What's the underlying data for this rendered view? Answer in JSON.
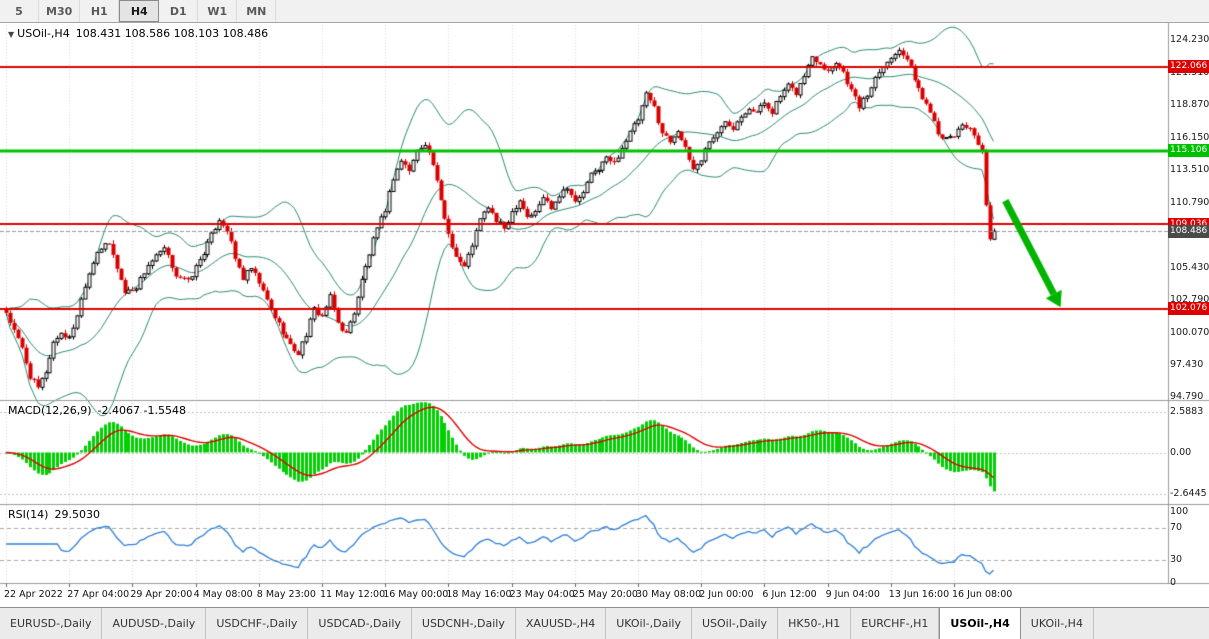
{
  "toolbar": {
    "timeframes": [
      "5",
      "M30",
      "H1",
      "H4",
      "D1",
      "W1",
      "MN"
    ],
    "active": "H4"
  },
  "chart": {
    "title_symbol": "USOil-,H4",
    "title_ohlc": "108.431 108.586 108.103 108.486",
    "macd_name": "MACD(12,26,9)",
    "macd_values": "-2.4067 -1.5548",
    "rsi_name": "RSI(14)",
    "rsi_value": "29.5030"
  },
  "chart_data": {
    "type": "candlestick",
    "symbol": "USOil-,H4",
    "current_ohlc": {
      "open": 108.431,
      "high": 108.586,
      "low": 108.103,
      "close": 108.486
    },
    "y_axis_labels": [
      "124.230",
      "121.510",
      "118.870",
      "116.150",
      "113.510",
      "110.790",
      "105.430",
      "102.790",
      "100.070",
      "97.430",
      "94.790"
    ],
    "x_axis_labels": [
      "22 Apr 2022",
      "27 Apr 04:00",
      "29 Apr 20:00",
      "4 May 08:00",
      "8 May 23:00",
      "11 May 12:00",
      "16 May 00:00",
      "18 May 16:00",
      "23 May 04:00",
      "25 May 20:00",
      "30 May 08:00",
      "2 Jun 00:00",
      "6 Jun 12:00",
      "9 Jun 04:00",
      "13 Jun 16:00",
      "16 Jun 08:00"
    ],
    "bars_per_label": 16,
    "bar_count": 251,
    "price_anchors": [
      [
        0,
        101.8
      ],
      [
        2,
        100.2
      ],
      [
        4,
        98.8
      ],
      [
        6,
        96.5
      ],
      [
        8,
        95.5
      ],
      [
        10,
        96.9
      ],
      [
        12,
        99.3
      ],
      [
        14,
        100.1
      ],
      [
        16,
        99.6
      ],
      [
        18,
        101.6
      ],
      [
        20,
        104.1
      ],
      [
        23,
        106.9
      ],
      [
        26,
        107.4
      ],
      [
        28,
        105.5
      ],
      [
        30,
        103.4
      ],
      [
        33,
        103.9
      ],
      [
        36,
        105.7
      ],
      [
        40,
        107.0
      ],
      [
        43,
        104.9
      ],
      [
        46,
        104.3
      ],
      [
        48,
        105.5
      ],
      [
        51,
        107.4
      ],
      [
        54,
        109.5
      ],
      [
        56,
        108.6
      ],
      [
        58,
        106.2
      ],
      [
        60,
        104.6
      ],
      [
        62,
        105.4
      ],
      [
        64,
        104.2
      ],
      [
        67,
        102.0
      ],
      [
        70,
        100.2
      ],
      [
        72,
        99.0
      ],
      [
        74,
        98.4
      ],
      [
        76,
        100.0
      ],
      [
        78,
        102.0
      ],
      [
        80,
        101.5
      ],
      [
        82,
        103.0
      ],
      [
        84,
        100.9
      ],
      [
        86,
        100.0
      ],
      [
        88,
        101.8
      ],
      [
        90,
        104.4
      ],
      [
        93,
        107.7
      ],
      [
        96,
        110.3
      ],
      [
        98,
        112.9
      ],
      [
        100,
        114.3
      ],
      [
        102,
        113.5
      ],
      [
        104,
        115.1
      ],
      [
        106,
        115.8
      ],
      [
        108,
        114.0
      ],
      [
        110,
        110.9
      ],
      [
        112,
        108.3
      ],
      [
        114,
        106.4
      ],
      [
        116,
        105.5
      ],
      [
        118,
        107.4
      ],
      [
        120,
        109.4
      ],
      [
        122,
        110.5
      ],
      [
        124,
        109.3
      ],
      [
        126,
        108.7
      ],
      [
        128,
        110.1
      ],
      [
        130,
        111.1
      ],
      [
        132,
        109.7
      ],
      [
        134,
        110.0
      ],
      [
        136,
        111.3
      ],
      [
        138,
        110.5
      ],
      [
        140,
        111.5
      ],
      [
        142,
        112.2
      ],
      [
        144,
        110.8
      ],
      [
        146,
        111.7
      ],
      [
        148,
        113.1
      ],
      [
        150,
        113.7
      ],
      [
        152,
        114.5
      ],
      [
        154,
        114.1
      ],
      [
        156,
        115.4
      ],
      [
        158,
        116.6
      ],
      [
        160,
        117.7
      ],
      [
        162,
        119.7
      ],
      [
        164,
        118.7
      ],
      [
        166,
        116.6
      ],
      [
        168,
        115.9
      ],
      [
        170,
        116.9
      ],
      [
        172,
        115.2
      ],
      [
        174,
        113.6
      ],
      [
        176,
        114.4
      ],
      [
        178,
        116.0
      ],
      [
        180,
        116.5
      ],
      [
        182,
        117.6
      ],
      [
        184,
        117.1
      ],
      [
        186,
        118.1
      ],
      [
        188,
        118.7
      ],
      [
        190,
        118.3
      ],
      [
        192,
        119.1
      ],
      [
        194,
        118.4
      ],
      [
        196,
        119.6
      ],
      [
        198,
        120.4
      ],
      [
        200,
        119.9
      ],
      [
        202,
        121.3
      ],
      [
        204,
        122.9
      ],
      [
        206,
        122.4
      ],
      [
        208,
        121.7
      ],
      [
        210,
        122.5
      ],
      [
        212,
        121.6
      ],
      [
        214,
        120.1
      ],
      [
        216,
        118.8
      ],
      [
        218,
        119.7
      ],
      [
        220,
        121.2
      ],
      [
        222,
        122.3
      ],
      [
        224,
        122.7
      ],
      [
        226,
        123.6
      ],
      [
        228,
        122.7
      ],
      [
        230,
        121.1
      ],
      [
        232,
        119.4
      ],
      [
        234,
        118.5
      ],
      [
        236,
        116.7
      ],
      [
        238,
        116.0
      ],
      [
        240,
        116.4
      ],
      [
        242,
        117.3
      ],
      [
        244,
        117.0
      ],
      [
        246,
        115.4
      ],
      [
        247,
        114.9
      ],
      [
        248,
        110.6
      ],
      [
        249,
        107.6
      ],
      [
        250,
        108.5
      ]
    ],
    "h_lines": [
      {
        "value": 122.066,
        "label": "122.066",
        "color": "#dd0000",
        "width": 2
      },
      {
        "value": 115.106,
        "label": "115.106",
        "color": "#00c000",
        "width": 3
      },
      {
        "value": 109.036,
        "label": "109.036",
        "color": "#dd0000",
        "width": 2
      },
      {
        "value": 102.076,
        "label": "102.076",
        "color": "#dd0000",
        "width": 2
      }
    ],
    "current_price_tag": {
      "value": 108.486,
      "label": "108.486",
      "color": "#4a4a4a"
    },
    "candle_up_color": "#000000",
    "candle_down_color": "#d80000",
    "bollinger": {
      "period": 20,
      "deviation": 2,
      "color": "#2b8a74"
    },
    "macd": {
      "fast": 12,
      "slow": 26,
      "signal": 9,
      "hist_color": "#00d000",
      "signal_color": "#dd0000",
      "current_macd": -2.4067,
      "current_signal": -1.5548,
      "axis_labels": [
        {
          "v": 2.5883,
          "t": "2.5883"
        },
        {
          "v": 0,
          "t": "0.00"
        },
        {
          "v": -2.6445,
          "t": "-2.6445"
        }
      ]
    },
    "rsi": {
      "period": 14,
      "current": 29.503,
      "color": "#2f7fd6",
      "levels": [
        70,
        30
      ],
      "axis_labels": [
        {
          "v": 100,
          "t": "100"
        },
        {
          "v": 70,
          "t": "70"
        },
        {
          "v": 30,
          "t": "30"
        },
        {
          "v": 0,
          "t": "0"
        }
      ]
    },
    "arrow": {
      "from": {
        "bar": 253,
        "price": 111.0
      },
      "to": {
        "bar": 267,
        "price": 102.2
      },
      "color": "#00b400"
    }
  },
  "tabs": {
    "items": [
      "EURUSD-,Daily",
      "AUDUSD-,Daily",
      "USDCHF-,Daily",
      "USDCAD-,Daily",
      "USDCNH-,Daily",
      "XAUUSD-,H4",
      "UKOil-,Daily",
      "USOil-,Daily",
      "HK50-,H1",
      "EURCHF-,H1",
      "USOil-,H4",
      "UKOil-,H4"
    ],
    "active": "USOil-,H4"
  }
}
